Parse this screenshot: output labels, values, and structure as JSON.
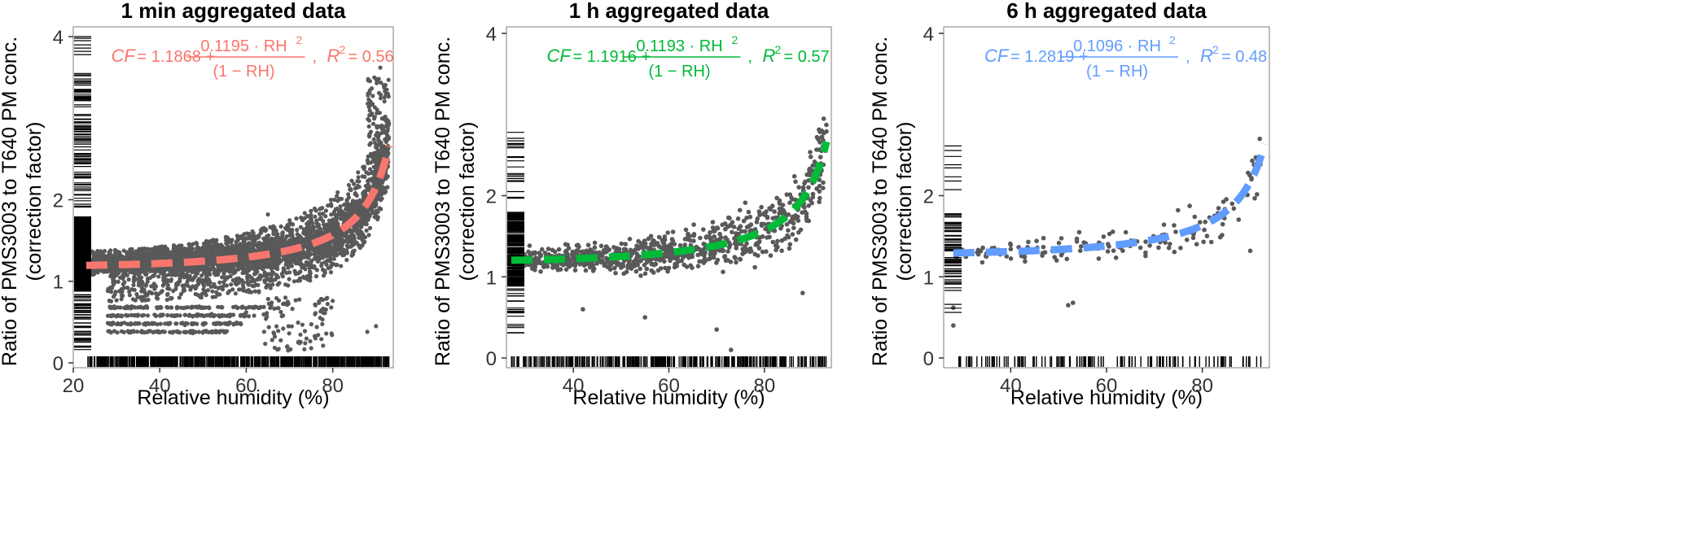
{
  "chart_data": [
    {
      "type": "scatter",
      "title": "1 min aggregated data",
      "xlabel": "Relative humidity (%)",
      "ylabel_line1": "Ratio of PMS3003 to T640 PM conc.",
      "ylabel_line2": "(correction factor)",
      "xlim": [
        20,
        94
      ],
      "ylim": [
        -0.06,
        4.12
      ],
      "x_ticks": [
        20,
        40,
        60,
        80
      ],
      "y_ticks": [
        0,
        1,
        2,
        4
      ],
      "point_color": "#595959",
      "fit_color": "#F8766D",
      "fit": {
        "a": 1.1868,
        "b": 0.1195,
        "x_start": 23,
        "x_end": 93
      },
      "equation": {
        "cf": "CF",
        "eq": "= 1.1868 +",
        "num": "0.1195 · RH",
        "exp": "2",
        "den": "(1 − RH)",
        "r2_label": "R",
        "r2_value": "= 0.56"
      },
      "points": {
        "x_range": [
          23,
          93
        ],
        "cloud_pattern": "dense",
        "extras": [
          [
            65,
            1.82
          ],
          [
            52,
            0.6
          ],
          [
            60,
            0.62
          ],
          [
            66,
            0.28
          ],
          [
            72,
            0.25
          ],
          [
            76,
            0.3
          ],
          [
            88,
            0.38
          ],
          [
            90,
            0.45
          ],
          [
            91,
            3.62
          ]
        ],
        "band_y_values": [
          0.38,
          0.48,
          0.58,
          0.68
        ],
        "band_x_range": [
          28,
          56
        ]
      },
      "rug_x_range": [
        23,
        93
      ],
      "rug_y_range": [
        0.15,
        3.55
      ]
    },
    {
      "type": "scatter",
      "title": "1 h aggregated data",
      "xlabel": "Relative humidity (%)",
      "ylabel_line1": "Ratio of PMS3003 to T640 PM conc.",
      "ylabel_line2": "(correction factor)",
      "xlim": [
        26,
        94
      ],
      "ylim": [
        -0.12,
        4.08
      ],
      "x_ticks": [
        40,
        60,
        80
      ],
      "y_ticks": [
        0,
        1,
        2,
        4
      ],
      "point_color": "#595959",
      "fit_color": "#00BA38",
      "fit": {
        "a": 1.1916,
        "b": 0.1193,
        "x_start": 27,
        "x_end": 93
      },
      "equation": {
        "cf": "CF",
        "eq": "= 1.1916 +",
        "num": "0.1193 · RH",
        "exp": "2",
        "den": "(1 − RH)",
        "r2_label": "R",
        "r2_value": "= 0.57"
      },
      "points": {
        "x_range": [
          27,
          93
        ],
        "cloud_pattern": "medium",
        "extras": [
          [
            42,
            0.6
          ],
          [
            55,
            0.5
          ],
          [
            70,
            0.35
          ],
          [
            73,
            0.1
          ],
          [
            88,
            0.8
          ],
          [
            92,
            2.8
          ],
          [
            91,
            2.72
          ]
        ]
      },
      "rug_x_range": [
        27,
        93
      ],
      "rug_y_range": [
        0.3,
        2.8
      ]
    },
    {
      "type": "scatter",
      "title": "6 h aggregated data",
      "xlabel": "Relative humidity (%)",
      "ylabel_line1": "Ratio of PMS3003 to T640 PM conc.",
      "ylabel_line2": "(correction factor)",
      "xlim": [
        26,
        94
      ],
      "ylim": [
        -0.12,
        4.08
      ],
      "x_ticks": [
        40,
        60,
        80
      ],
      "y_ticks": [
        0,
        1,
        2,
        4
      ],
      "point_color": "#595959",
      "fit_color": "#619CFF",
      "fit": {
        "a": 1.2819,
        "b": 0.1096,
        "x_start": 28,
        "x_end": 93
      },
      "equation": {
        "cf": "CF",
        "eq": "= 1.2819 +",
        "num": "0.1096 · RH",
        "exp": "2",
        "den": "(1 − RH)",
        "r2_label": "R",
        "r2_value": "= 0.48"
      },
      "points": {
        "x_range": [
          28,
          93
        ],
        "cloud_pattern": "sparse",
        "extras": [
          [
            28,
            0.4
          ],
          [
            28,
            0.62
          ],
          [
            52,
            0.65
          ],
          [
            53,
            0.68
          ],
          [
            92,
            2.7
          ],
          [
            90,
            1.32
          ]
        ]
      },
      "rug_x_range": [
        28,
        93
      ],
      "rug_y_range": [
        0.4,
        2.7
      ]
    }
  ]
}
